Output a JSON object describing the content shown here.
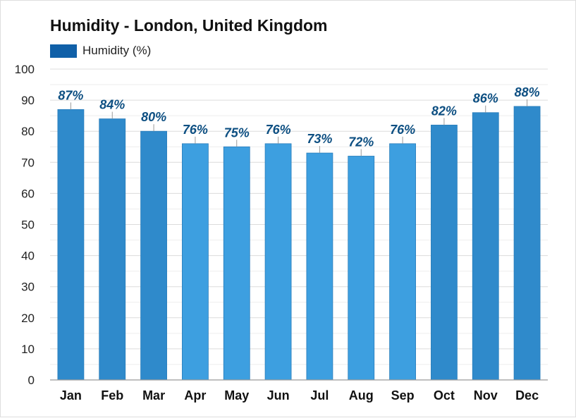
{
  "chart_data": {
    "type": "bar",
    "title": "Humidity - London, United Kingdom",
    "legend": "Humidity (%)",
    "categories": [
      "Jan",
      "Feb",
      "Mar",
      "Apr",
      "May",
      "Jun",
      "Jul",
      "Aug",
      "Sep",
      "Oct",
      "Nov",
      "Dec"
    ],
    "series": [
      {
        "name": "Humidity (%)",
        "values": [
          87,
          84,
          80,
          76,
          75,
          76,
          73,
          72,
          76,
          82,
          86,
          88
        ],
        "labels": [
          "87%",
          "84%",
          "80%",
          "76%",
          "75%",
          "76%",
          "73%",
          "72%",
          "76%",
          "82%",
          "86%",
          "88%"
        ]
      }
    ],
    "ylim": [
      0,
      100
    ],
    "yticks": [
      0,
      10,
      20,
      30,
      40,
      50,
      60,
      70,
      80,
      90,
      100
    ],
    "grid": true,
    "legend_position": "top-left",
    "colors": {
      "bar_light": "#3d9fe0",
      "bar_dark": "#2f8acb",
      "label": "#0d4f82",
      "grid": "#dcdcdc",
      "legend": "#1060a8"
    }
  }
}
